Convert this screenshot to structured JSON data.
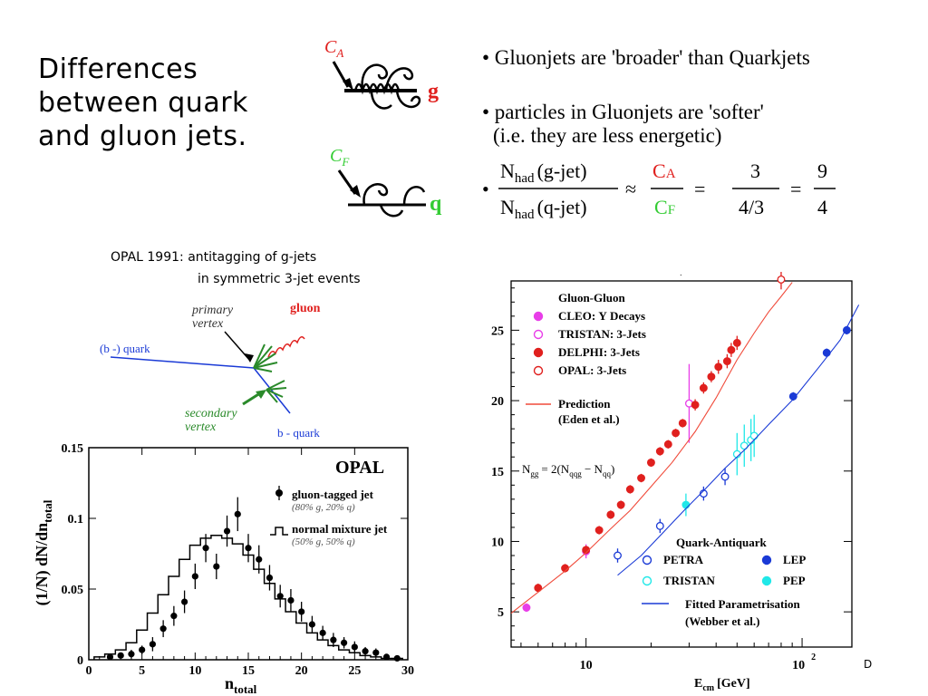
{
  "slide": {
    "title": "Differences\nbetween quark\nand gluon jets.",
    "footer_mark": "D"
  },
  "bullets": {
    "b1": "• Gluonjets are 'broader' than Quarkjets",
    "b2_line1": "• particles in Gluonjets are 'softer'",
    "b2_line2": "(i.e. they are less energetic)"
  },
  "formula": {
    "num_lhs": "N",
    "sub": "had",
    "num_lhs_arg": "(g-jet)",
    "den_lhs_arg": "(q-jet)",
    "approx": "≈",
    "ca": "C",
    "ca_sub": "A",
    "cf": "C",
    "cf_sub": "F",
    "eq1": "=",
    "three": "3",
    "four_thirds": "4/3",
    "eq2": "=",
    "nine": "9",
    "four": "4"
  },
  "colors": {
    "red": "#e0201e",
    "green": "#33cc33",
    "blue": "#1a3ad6",
    "magenta": "#e83ee8",
    "cyan": "#20e8e8",
    "dark_green": "#2a8a2a",
    "pred_line": "#f04a3a"
  },
  "feyn": {
    "ca_label": "C",
    "ca_sub": "A",
    "g_label": "g",
    "cf_label": "C",
    "cf_sub": "F",
    "q_label": "q"
  },
  "opal_diagram": {
    "caption_line1": "OPAL 1991:  antitagging of g-jets",
    "caption_line2": "in symmetric 3-jet events",
    "primary_vertex": "primary\nvertex",
    "gluon": "gluon",
    "b_quark_left": "(b -) quark",
    "secondary_vertex": "secondary\nvertex",
    "b_quark_right": "b - quark"
  },
  "chart_data": [
    {
      "type": "scatter",
      "title": "OPAL",
      "xlabel": "n",
      "xlabel_sub": "total",
      "ylabel": "(1/N) dN/dn",
      "ylabel_sub": "total",
      "xlim": [
        0,
        30
      ],
      "ylim": [
        0,
        0.15
      ],
      "x_ticks": [
        "0",
        "5",
        "10",
        "15",
        "20",
        "25",
        "30"
      ],
      "y_ticks": [
        "0",
        "0.05",
        "0.1",
        "0.15"
      ],
      "series": [
        {
          "name": "gluon-tagged jet",
          "note": "(80% g, 20% q)",
          "style": "points",
          "x": [
            2,
            3,
            4,
            5,
            6,
            7,
            8,
            9,
            10,
            11,
            12,
            13,
            14,
            15,
            16,
            17,
            18,
            19,
            20,
            21,
            22,
            23,
            24,
            25,
            26,
            27,
            28,
            29
          ],
          "y": [
            0.002,
            0.003,
            0.004,
            0.007,
            0.011,
            0.022,
            0.031,
            0.041,
            0.059,
            0.079,
            0.066,
            0.091,
            0.103,
            0.079,
            0.071,
            0.058,
            0.045,
            0.042,
            0.034,
            0.025,
            0.019,
            0.014,
            0.012,
            0.009,
            0.006,
            0.005,
            0.002,
            0.001
          ],
          "err": [
            0.001,
            0.002,
            0.003,
            0.003,
            0.005,
            0.006,
            0.007,
            0.008,
            0.009,
            0.01,
            0.009,
            0.011,
            0.012,
            0.01,
            0.01,
            0.009,
            0.008,
            0.008,
            0.007,
            0.006,
            0.005,
            0.005,
            0.004,
            0.004,
            0.003,
            0.003,
            0.002,
            0.002
          ]
        },
        {
          "name": "normal mixture jet",
          "note": "(50% g, 50% q)",
          "style": "histogram",
          "x": [
            1,
            2,
            3,
            4,
            5,
            6,
            7,
            8,
            9,
            10,
            11,
            12,
            13,
            14,
            15,
            16,
            17,
            18,
            19,
            20,
            21,
            22,
            23,
            24,
            25,
            26,
            27,
            28,
            29
          ],
          "y": [
            0.002,
            0.004,
            0.007,
            0.012,
            0.021,
            0.033,
            0.046,
            0.059,
            0.071,
            0.081,
            0.086,
            0.088,
            0.086,
            0.082,
            0.074,
            0.064,
            0.054,
            0.043,
            0.034,
            0.026,
            0.019,
            0.014,
            0.01,
            0.007,
            0.005,
            0.003,
            0.002,
            0.001,
            0.001
          ]
        }
      ]
    },
    {
      "type": "scatter",
      "xlabel": "E",
      "xlabel_sub": "cm",
      "xlabel_unit": "[GeV]",
      "x_scale": "log",
      "xlim": [
        4.5,
        170
      ],
      "ylim": [
        2.5,
        28.5
      ],
      "y_ticks": [
        "5",
        "10",
        "15",
        "20",
        "25"
      ],
      "x_tick_10": "10",
      "x_tick_100": "10",
      "x_tick_100_sup": "2",
      "legend_title_top": "Gluon-Gluon",
      "legend_title_bottom": "Quark-Antiquark",
      "equation": "N",
      "equation_rest": "= 2(N   − N  )",
      "series": [
        {
          "name": "CLEO: Υ Decays",
          "marker": "filled",
          "color": "#e83ee8",
          "x": [
            5.3,
            10
          ],
          "y": [
            5.3,
            9.3
          ],
          "err": [
            0.3,
            0.5
          ]
        },
        {
          "name": "TRISTAN: 3-Jets",
          "marker": "open",
          "color": "#e83ee8",
          "x": [
            30
          ],
          "y": [
            19.8
          ],
          "err": [
            2.8
          ]
        },
        {
          "name": "DELPHI: 3-Jets",
          "marker": "filled",
          "color": "#e0201e",
          "x": [
            6,
            8,
            10,
            11.5,
            13,
            14.5,
            16,
            18,
            20,
            22,
            24,
            26,
            28,
            32,
            35,
            38,
            41,
            45,
            47,
            50
          ],
          "y": [
            6.7,
            8.1,
            9.4,
            10.8,
            11.9,
            12.6,
            13.7,
            14.5,
            15.6,
            16.4,
            16.9,
            17.7,
            18.4,
            19.7,
            20.9,
            21.7,
            22.4,
            22.8,
            23.6,
            24.1
          ],
          "err": [
            0.3,
            0.3,
            0.3,
            0.3,
            0.3,
            0.3,
            0.3,
            0.3,
            0.3,
            0.3,
            0.3,
            0.3,
            0.3,
            0.4,
            0.4,
            0.4,
            0.5,
            0.5,
            0.5,
            0.5
          ]
        },
        {
          "name": "OPAL: 3-Jets",
          "marker": "open",
          "color": "#e0201e",
          "x": [
            80
          ],
          "y": [
            28.6
          ],
          "err": [
            0.7
          ]
        },
        {
          "name": "Prediction (Eden et al.)",
          "marker": "line",
          "color": "#f04a3a",
          "x": [
            4.5,
            6,
            8,
            10,
            13,
            16,
            20,
            25,
            32,
            40,
            50,
            60,
            70,
            80,
            90
          ],
          "y": [
            4.9,
            6.4,
            7.9,
            9.2,
            10.9,
            12.2,
            13.9,
            15.6,
            17.8,
            20.2,
            22.9,
            24.8,
            26.3,
            27.4,
            28.4
          ]
        },
        {
          "name": "PETRA",
          "marker": "open",
          "color": "#1a3ad6",
          "x": [
            14,
            22,
            35,
            44
          ],
          "y": [
            9.0,
            11.1,
            13.4,
            14.6
          ],
          "err": [
            0.5,
            0.5,
            0.5,
            0.6
          ]
        },
        {
          "name": "TRISTAN",
          "marker": "open",
          "color": "#20e8e8",
          "x": [
            50,
            54,
            58,
            60
          ],
          "y": [
            16.2,
            16.8,
            17.2,
            17.5
          ],
          "err": [
            1.5,
            1.5,
            1.5,
            1.5
          ]
        },
        {
          "name": "LEP",
          "marker": "filled",
          "color": "#1a3ad6",
          "x": [
            91,
            130,
            161,
            172,
            183
          ],
          "y": [
            20.3,
            23.4,
            25.0,
            26.0,
            26.2
          ],
          "err": [
            0.3,
            0.3,
            0.3,
            0.3,
            0.3
          ]
        },
        {
          "name": "PEP",
          "marker": "filled",
          "color": "#20e8e8",
          "x": [
            29
          ],
          "y": [
            12.6
          ],
          "err": [
            0.8
          ]
        },
        {
          "name": "Fitted Parametrisation (Webber et al.)",
          "marker": "line",
          "color": "#1a3ad6",
          "x": [
            14,
            18,
            22,
            28,
            35,
            44,
            55,
            70,
            91,
            120,
            150,
            183
          ],
          "y": [
            7.6,
            9.0,
            10.4,
            12.1,
            13.6,
            15.2,
            16.6,
            18.3,
            20.1,
            22.4,
            24.3,
            26.8
          ]
        }
      ]
    }
  ]
}
